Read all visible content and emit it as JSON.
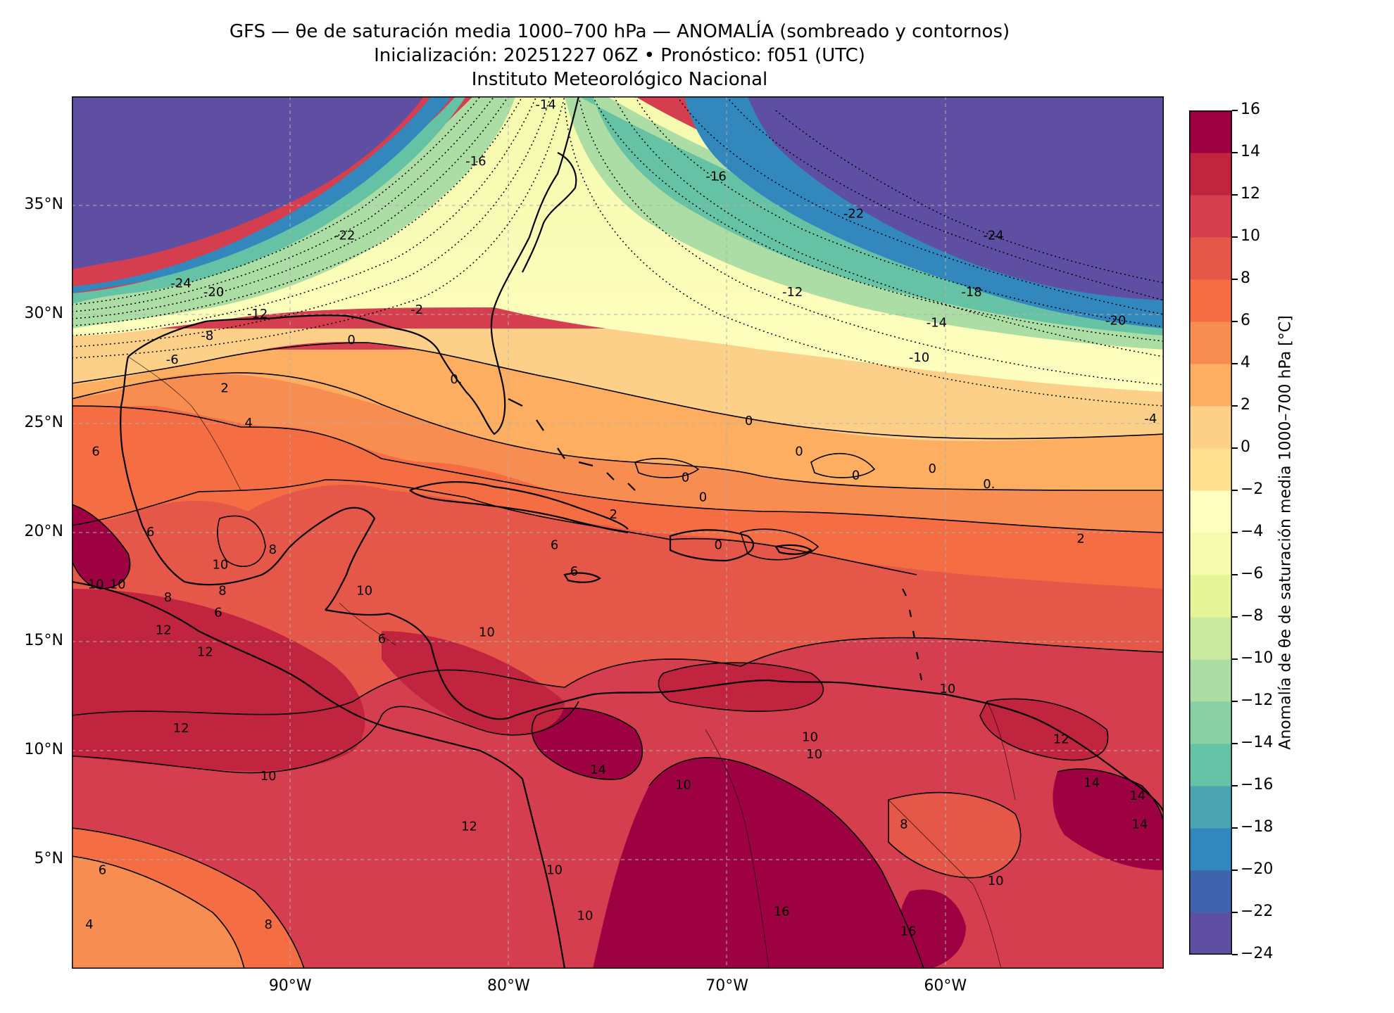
{
  "header": {
    "title": "GFS — θe de saturación media 1000–700 hPa — ANOMALÍA (sombreado y contornos)",
    "subtitle": "Inicialización: 20251227 06Z   •   Pronóstico: f051 (UTC)",
    "institution": "Instituto Meteorológico Nacional"
  },
  "map": {
    "lat_range": [
      0,
      40
    ],
    "lon_range": [
      -100,
      -50
    ],
    "lat_ticks": [
      {
        "value": 35,
        "label": "35°N"
      },
      {
        "value": 30,
        "label": "30°N"
      },
      {
        "value": 25,
        "label": "25°N"
      },
      {
        "value": 20,
        "label": "20°N"
      },
      {
        "value": 15,
        "label": "15°N"
      },
      {
        "value": 10,
        "label": "10°N"
      },
      {
        "value": 5,
        "label": "5°N"
      }
    ],
    "lon_ticks": [
      {
        "value": -90,
        "label": "90°W"
      },
      {
        "value": -80,
        "label": "80°W"
      },
      {
        "value": -70,
        "label": "70°W"
      },
      {
        "value": -60,
        "label": "60°W"
      }
    ],
    "contour_labels": [
      {
        "text": "-24",
        "lat": 31.4,
        "lon": -95.0
      },
      {
        "text": "-20",
        "lat": 31.0,
        "lon": -93.5
      },
      {
        "text": "-22",
        "lat": 33.6,
        "lon": -87.5
      },
      {
        "text": "-16",
        "lat": 37.0,
        "lon": -81.5
      },
      {
        "text": "-14",
        "lat": 39.6,
        "lon": -78.3
      },
      {
        "text": "-12",
        "lat": 30.0,
        "lon": -91.5
      },
      {
        "text": "-8",
        "lat": 29.0,
        "lon": -93.8
      },
      {
        "text": "-6",
        "lat": 27.9,
        "lon": -95.4
      },
      {
        "text": "-2",
        "lat": 30.2,
        "lon": -84.2
      },
      {
        "text": "0",
        "lat": 28.8,
        "lon": -87.2
      },
      {
        "text": "0.",
        "lat": 27.0,
        "lon": -82.4
      },
      {
        "text": "2",
        "lat": 26.6,
        "lon": -93.0
      },
      {
        "text": "4",
        "lat": 25.0,
        "lon": -91.9
      },
      {
        "text": "-16",
        "lat": 36.3,
        "lon": -70.5
      },
      {
        "text": "-22",
        "lat": 34.6,
        "lon": -64.2
      },
      {
        "text": "-24",
        "lat": 33.6,
        "lon": -57.8
      },
      {
        "text": "-12",
        "lat": 31.0,
        "lon": -67.0
      },
      {
        "text": "-18",
        "lat": 31.0,
        "lon": -58.8
      },
      {
        "text": "-14",
        "lat": 29.6,
        "lon": -60.4
      },
      {
        "text": "-20",
        "lat": 29.7,
        "lon": -52.2
      },
      {
        "text": "-10",
        "lat": 28.0,
        "lon": -61.2
      },
      {
        "text": "-4",
        "lat": 25.2,
        "lon": -50.6
      },
      {
        "text": "0",
        "lat": 25.1,
        "lon": -69.0
      },
      {
        "text": "0",
        "lat": 23.7,
        "lon": -66.7
      },
      {
        "text": "0",
        "lat": 22.6,
        "lon": -64.1
      },
      {
        "text": "0",
        "lat": 22.9,
        "lon": -60.6
      },
      {
        "text": "0.",
        "lat": 22.2,
        "lon": -58.0
      },
      {
        "text": "0",
        "lat": 22.5,
        "lon": -71.9
      },
      {
        "text": "0",
        "lat": 21.6,
        "lon": -71.1
      },
      {
        "text": "2",
        "lat": 20.8,
        "lon": -75.2
      },
      {
        "text": "0",
        "lat": 19.4,
        "lon": -70.4
      },
      {
        "text": "2",
        "lat": 19.7,
        "lon": -53.8
      },
      {
        "text": "6",
        "lat": 19.4,
        "lon": -77.9
      },
      {
        "text": "6",
        "lat": 18.2,
        "lon": -77.0
      },
      {
        "text": "6",
        "lat": 23.7,
        "lon": -98.9
      },
      {
        "text": "6",
        "lat": 20.0,
        "lon": -96.4
      },
      {
        "text": "8",
        "lat": 19.2,
        "lon": -90.8
      },
      {
        "text": "8",
        "lat": 17.3,
        "lon": -93.1
      },
      {
        "text": "10",
        "lat": 17.3,
        "lon": -86.6
      },
      {
        "text": "10",
        "lat": 18.5,
        "lon": -93.2
      },
      {
        "text": "10",
        "lat": 17.6,
        "lon": -98.9
      },
      {
        "text": "10",
        "lat": 17.6,
        "lon": -97.9
      },
      {
        "text": "6",
        "lat": 16.3,
        "lon": -93.3
      },
      {
        "text": "6",
        "lat": 15.1,
        "lon": -85.8
      },
      {
        "text": "8",
        "lat": 17.0,
        "lon": -95.6
      },
      {
        "text": "12",
        "lat": 15.5,
        "lon": -95.8
      },
      {
        "text": "12",
        "lat": 14.5,
        "lon": -93.9
      },
      {
        "text": "10",
        "lat": 15.4,
        "lon": -81.0
      },
      {
        "text": "10",
        "lat": 12.8,
        "lon": -59.9
      },
      {
        "text": "10",
        "lat": 10.6,
        "lon": -66.2
      },
      {
        "text": "10",
        "lat": 9.8,
        "lon": -66.0
      },
      {
        "text": "12",
        "lat": 10.5,
        "lon": -54.7
      },
      {
        "text": "10",
        "lat": 8.8,
        "lon": -91.0
      },
      {
        "text": "12",
        "lat": 11.0,
        "lon": -95.0
      },
      {
        "text": "14",
        "lat": 9.1,
        "lon": -75.9
      },
      {
        "text": "10",
        "lat": 8.4,
        "lon": -72.0
      },
      {
        "text": "12",
        "lat": 6.5,
        "lon": -81.8
      },
      {
        "text": "14",
        "lat": 8.5,
        "lon": -53.3
      },
      {
        "text": "14",
        "lat": 7.9,
        "lon": -51.2
      },
      {
        "text": "14",
        "lat": 6.6,
        "lon": -51.1
      },
      {
        "text": "8",
        "lat": 6.6,
        "lon": -61.9
      },
      {
        "text": "6",
        "lat": 4.5,
        "lon": -98.6
      },
      {
        "text": "10",
        "lat": 4.5,
        "lon": -77.9
      },
      {
        "text": "10",
        "lat": 4.0,
        "lon": -57.7
      },
      {
        "text": "16",
        "lat": 2.6,
        "lon": -67.5
      },
      {
        "text": "16",
        "lat": 1.7,
        "lon": -61.7
      },
      {
        "text": "10",
        "lat": 2.4,
        "lon": -76.5
      },
      {
        "text": "8",
        "lat": 2.0,
        "lon": -91.0
      },
      {
        "text": "4",
        "lat": 2.0,
        "lon": -99.2
      }
    ]
  },
  "colorbar": {
    "label": "Anomalía de θe de saturación media 1000–700 hPa [°C]",
    "levels": [
      -24,
      -22,
      -20,
      -18,
      -16,
      -14,
      -12,
      -10,
      -8,
      -6,
      -4,
      -2,
      0,
      2,
      4,
      6,
      8,
      10,
      12,
      14,
      16
    ],
    "tick_labels": [
      "16",
      "14",
      "12",
      "10",
      "8",
      "6",
      "4",
      "2",
      "0",
      "−2",
      "−4",
      "−6",
      "−8",
      "−10",
      "−12",
      "−14",
      "−16",
      "−18",
      "−20",
      "−22",
      "−24"
    ],
    "colors": [
      "#5e4fa2",
      "#4063ad",
      "#3288bd",
      "#4ba4b1",
      "#66c2a5",
      "#89d0a4",
      "#abdda4",
      "#cbeaa0",
      "#e6f598",
      "#f4faae",
      "#ffffbf",
      "#fee090",
      "#fdd08a",
      "#fdae61",
      "#f88d52",
      "#f46d43",
      "#e55749",
      "#d53e4f",
      "#c0243e",
      "#9e0142"
    ]
  }
}
